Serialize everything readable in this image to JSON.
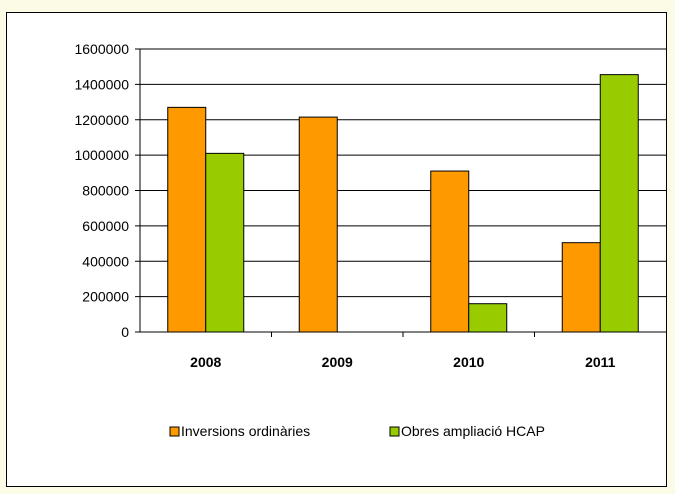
{
  "chart_data": {
    "type": "bar",
    "categories": [
      "2008",
      "2009",
      "2010",
      "2011"
    ],
    "series": [
      {
        "name": "Inversions ordinàries",
        "values": [
          1270000,
          1215000,
          910000,
          505000
        ],
        "color": "#ff9900"
      },
      {
        "name": "Obres ampliació HCAP",
        "values": [
          1010000,
          0,
          160000,
          1455000
        ],
        "color": "#99cc00"
      }
    ],
    "y_ticks": [
      "0",
      "200000",
      "400000",
      "600000",
      "800000",
      "1000000",
      "1200000",
      "1400000",
      "1600000"
    ],
    "ylim": [
      0,
      1600000
    ],
    "grid": true,
    "legend_position": "bottom"
  }
}
